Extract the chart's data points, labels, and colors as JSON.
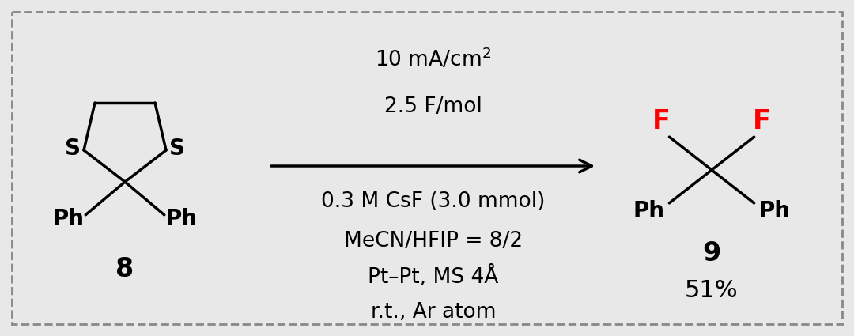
{
  "background_color": "#e8e8e8",
  "border_color": "#888888",
  "fig_width": 10.8,
  "fig_height": 4.25,
  "condition_line1": "10 mA/cm$^2$",
  "condition_line2": "2.5 F/mol",
  "condition_line3": "0.3 M CsF (3.0 mmol)",
  "condition_line4": "MeCN/HFIP = 8/2",
  "condition_line5": "Pt–Pt, MS 4Å",
  "condition_line6": "r.t., Ar atom",
  "compound8_label": "8",
  "compound9_label": "9",
  "yield_label": "51%",
  "F_color": "#ff0000",
  "text_color": "#000000",
  "font_size_conditions": 19,
  "font_size_labels": 24,
  "font_size_yield": 22,
  "font_size_mol": 20
}
